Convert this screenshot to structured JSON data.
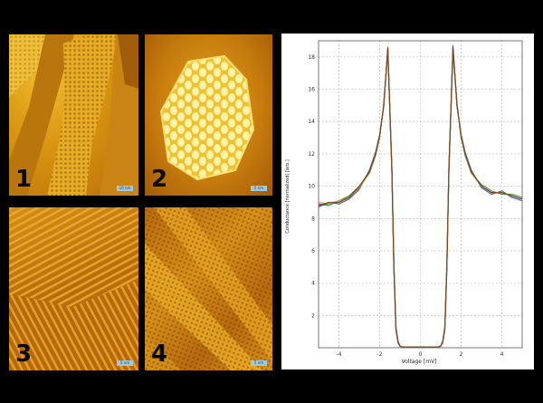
{
  "panels": [
    {
      "number": "1",
      "scale": "10 nm"
    },
    {
      "number": "2",
      "scale": "5 nm"
    },
    {
      "number": "3",
      "scale": "5 nm"
    },
    {
      "number": "4",
      "scale": "5 nm"
    }
  ],
  "colors": {
    "background": "#000000",
    "stm_light": "#f2c030",
    "stm_mid": "#d08a14",
    "stm_dark": "#8a4a06",
    "scalebar": "#9ec9dc"
  },
  "chart_data": {
    "type": "line",
    "xlabel": "Voltage [mV]",
    "ylabel": "Conductance [normalized] [arb.]",
    "xlim": [
      -5,
      5
    ],
    "ylim": [
      0,
      19
    ],
    "x_ticks": [
      "-4",
      "-2",
      "0",
      "2",
      "4"
    ],
    "y_ticks": [
      "2",
      "4",
      "6",
      "8",
      "10",
      "12",
      "14",
      "16",
      "18"
    ],
    "grid": true,
    "x": [
      -5.0,
      -4.5,
      -4.0,
      -3.5,
      -3.0,
      -2.5,
      -2.2,
      -2.0,
      -1.8,
      -1.6,
      -1.4,
      -1.3,
      -1.2,
      -1.1,
      -1.0,
      -0.9,
      -0.5,
      0.0,
      0.5,
      0.9,
      1.0,
      1.1,
      1.2,
      1.3,
      1.4,
      1.6,
      1.8,
      2.0,
      2.2,
      2.5,
      3.0,
      3.5,
      4.0,
      4.5,
      5.0
    ],
    "series": [
      {
        "color": "#d02020",
        "values": [
          8.8,
          8.9,
          9.0,
          9.3,
          9.9,
          10.9,
          12.0,
          13.1,
          15.0,
          18.6,
          11.0,
          5.0,
          1.2,
          0.4,
          0.1,
          0.05,
          0.05,
          0.05,
          0.05,
          0.05,
          0.1,
          0.4,
          1.2,
          5.0,
          11.0,
          18.6,
          15.0,
          13.1,
          12.0,
          10.9,
          10.0,
          9.6,
          9.6,
          9.4,
          9.2
        ]
      },
      {
        "color": "#2a8a2a",
        "values": [
          8.9,
          8.8,
          9.1,
          9.4,
          10.0,
          10.8,
          11.9,
          13.0,
          15.1,
          18.4,
          11.2,
          5.1,
          1.3,
          0.4,
          0.1,
          0.05,
          0.05,
          0.05,
          0.05,
          0.05,
          0.1,
          0.4,
          1.3,
          5.1,
          11.2,
          18.4,
          15.1,
          13.0,
          11.9,
          10.8,
          10.1,
          9.7,
          9.5,
          9.5,
          9.3
        ]
      },
      {
        "color": "#3050c0",
        "values": [
          8.7,
          9.0,
          8.9,
          9.2,
          9.8,
          11.0,
          12.1,
          13.2,
          14.9,
          18.5,
          10.9,
          4.9,
          1.1,
          0.3,
          0.1,
          0.05,
          0.05,
          0.05,
          0.05,
          0.05,
          0.1,
          0.3,
          1.1,
          4.9,
          10.9,
          18.7,
          14.9,
          13.2,
          12.1,
          11.0,
          9.9,
          9.5,
          9.7,
          9.3,
          9.1
        ]
      },
      {
        "color": "#b8a020",
        "values": [
          9.0,
          8.9,
          9.1,
          9.3,
          9.9,
          10.8,
          12.0,
          13.0,
          15.0,
          18.3,
          11.1,
          5.0,
          1.2,
          0.4,
          0.1,
          0.05,
          0.05,
          0.05,
          0.05,
          0.05,
          0.1,
          0.4,
          1.2,
          5.0,
          11.1,
          18.3,
          15.0,
          13.0,
          12.0,
          10.8,
          10.0,
          9.6,
          9.6,
          9.4,
          9.2
        ]
      },
      {
        "color": "#7a3a1a",
        "values": [
          8.8,
          9.0,
          9.0,
          9.3,
          10.0,
          10.9,
          12.0,
          13.1,
          15.0,
          18.5,
          11.0,
          5.0,
          1.2,
          0.4,
          0.1,
          0.05,
          0.05,
          0.05,
          0.05,
          0.05,
          0.1,
          0.4,
          1.2,
          5.0,
          11.0,
          18.5,
          15.0,
          13.1,
          12.0,
          10.9,
          10.0,
          9.6,
          9.6,
          9.4,
          9.2
        ]
      }
    ]
  }
}
